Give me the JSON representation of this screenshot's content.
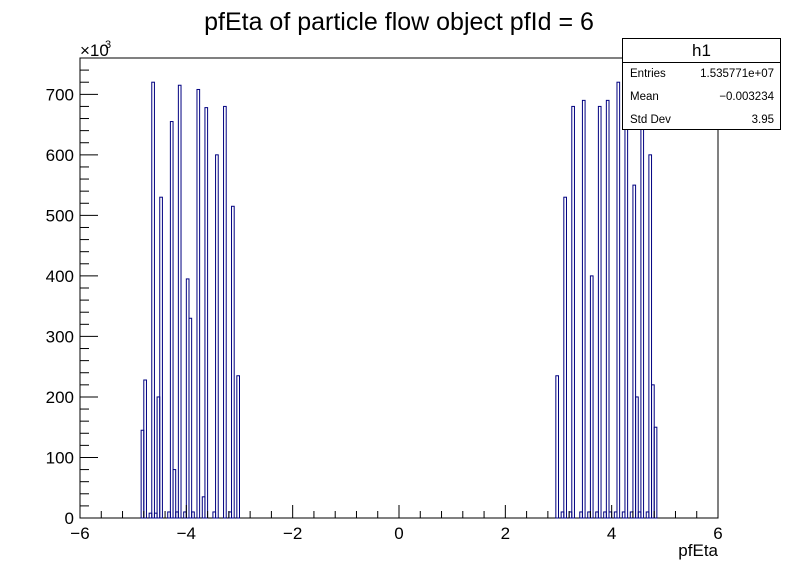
{
  "chart_data": {
    "type": "bar",
    "title": "pfEta of particle flow object pfId = 6",
    "xlabel": "pfEta",
    "ylabel": "",
    "y_multiplier_label": "×10",
    "y_multiplier_exp": "3",
    "xlim": [
      -6,
      6
    ],
    "ylim": [
      0,
      760
    ],
    "x_ticks": [
      "−6",
      "−4",
      "−2",
      "0",
      "2",
      "4",
      "6"
    ],
    "x_tick_values": [
      -6,
      -4,
      -2,
      0,
      2,
      4,
      6
    ],
    "y_ticks": [
      "0",
      "100",
      "200",
      "300",
      "400",
      "500",
      "600",
      "700"
    ],
    "y_tick_values": [
      0,
      100,
      200,
      300,
      400,
      500,
      600,
      700
    ],
    "bin_width": 0.05,
    "line_color": "#000080",
    "bins": [
      [
        -4.9,
        0
      ],
      [
        -4.85,
        145
      ],
      [
        -4.8,
        228
      ],
      [
        -4.75,
        0
      ],
      [
        -4.7,
        8
      ],
      [
        -4.65,
        720
      ],
      [
        -4.6,
        8
      ],
      [
        -4.55,
        200
      ],
      [
        -4.5,
        530
      ],
      [
        -4.45,
        0
      ],
      [
        -4.4,
        0
      ],
      [
        -4.35,
        10
      ],
      [
        -4.3,
        655
      ],
      [
        -4.25,
        80
      ],
      [
        -4.2,
        10
      ],
      [
        -4.15,
        715
      ],
      [
        -4.1,
        0
      ],
      [
        -4.05,
        10
      ],
      [
        -4.0,
        395
      ],
      [
        -3.95,
        330
      ],
      [
        -3.9,
        10
      ],
      [
        -3.85,
        0
      ],
      [
        -3.8,
        708
      ],
      [
        -3.75,
        0
      ],
      [
        -3.7,
        35
      ],
      [
        -3.65,
        678
      ],
      [
        -3.6,
        0
      ],
      [
        -3.55,
        0
      ],
      [
        -3.5,
        10
      ],
      [
        -3.45,
        600
      ],
      [
        -3.4,
        0
      ],
      [
        -3.35,
        0
      ],
      [
        -3.3,
        680
      ],
      [
        -3.25,
        0
      ],
      [
        -3.2,
        10
      ],
      [
        -3.15,
        515
      ],
      [
        -3.1,
        0
      ],
      [
        -3.05,
        235
      ],
      [
        -3.0,
        0
      ],
      [
        2.95,
        235
      ],
      [
        3.0,
        0
      ],
      [
        3.05,
        10
      ],
      [
        3.1,
        530
      ],
      [
        3.15,
        0
      ],
      [
        3.2,
        10
      ],
      [
        3.25,
        680
      ],
      [
        3.3,
        0
      ],
      [
        3.35,
        0
      ],
      [
        3.4,
        10
      ],
      [
        3.45,
        690
      ],
      [
        3.5,
        0
      ],
      [
        3.55,
        10
      ],
      [
        3.6,
        400
      ],
      [
        3.65,
        0
      ],
      [
        3.7,
        10
      ],
      [
        3.75,
        680
      ],
      [
        3.8,
        0
      ],
      [
        3.85,
        10
      ],
      [
        3.9,
        690
      ],
      [
        3.95,
        10
      ],
      [
        4.0,
        0
      ],
      [
        4.05,
        10
      ],
      [
        4.1,
        720
      ],
      [
        4.15,
        0
      ],
      [
        4.2,
        10
      ],
      [
        4.25,
        650
      ],
      [
        4.3,
        0
      ],
      [
        4.35,
        10
      ],
      [
        4.4,
        550
      ],
      [
        4.45,
        200
      ],
      [
        4.5,
        10
      ],
      [
        4.55,
        650
      ],
      [
        4.6,
        0
      ],
      [
        4.65,
        10
      ],
      [
        4.7,
        600
      ],
      [
        4.75,
        220
      ],
      [
        4.8,
        150
      ],
      [
        4.85,
        0
      ]
    ]
  },
  "stats_box": {
    "title": "h1",
    "rows": [
      {
        "key": "Entries",
        "value": "1.535771e+07"
      },
      {
        "key": "Mean",
        "value": "−0.003234"
      },
      {
        "key": "Std Dev",
        "value": "3.95"
      }
    ]
  }
}
